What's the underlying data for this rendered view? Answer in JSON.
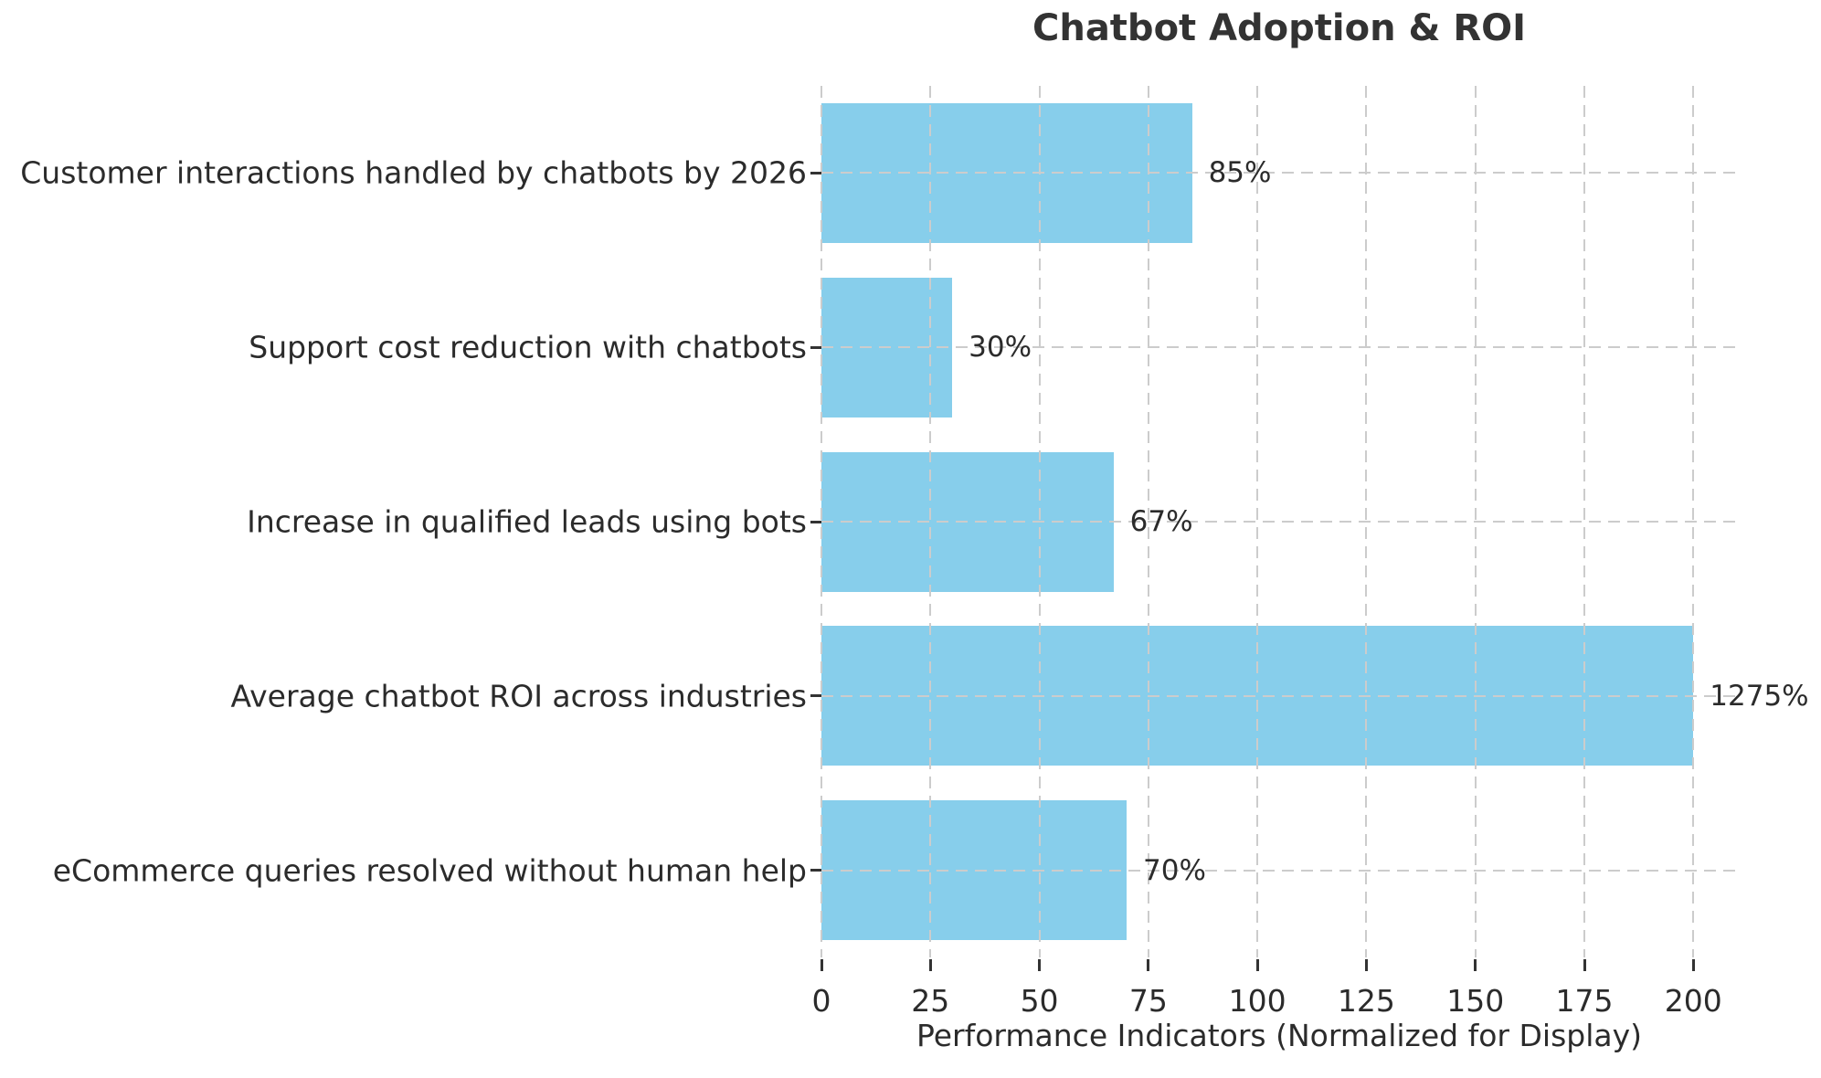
{
  "chart_data": {
    "type": "bar",
    "orientation": "horizontal",
    "title": "Chatbot Adoption & ROI",
    "xlabel": "Performance Indicators (Normalized for Display)",
    "categories": [
      "Customer interactions handled by chatbots by 2026",
      "Support cost reduction with chatbots",
      "Increase in qualified leads using bots",
      "Average chatbot ROI across industries",
      "eCommerce queries resolved without human help"
    ],
    "values": [
      85,
      30,
      67,
      1275,
      70
    ],
    "display_values": [
      85,
      30,
      67,
      200,
      70
    ],
    "value_labels": [
      "85%",
      "30%",
      "67%",
      "1275%",
      "70%"
    ],
    "x_ticks": [
      0,
      25,
      50,
      75,
      100,
      125,
      150,
      175,
      200
    ],
    "xlim": [
      0,
      210
    ],
    "bar_color": "#87CEEB",
    "grid": {
      "visible": true,
      "style": "dashed",
      "color": "#cccccc"
    },
    "text_color": "#2b2b2b",
    "title_color": "#333333",
    "background": "#ffffff",
    "legend_position": "none"
  }
}
